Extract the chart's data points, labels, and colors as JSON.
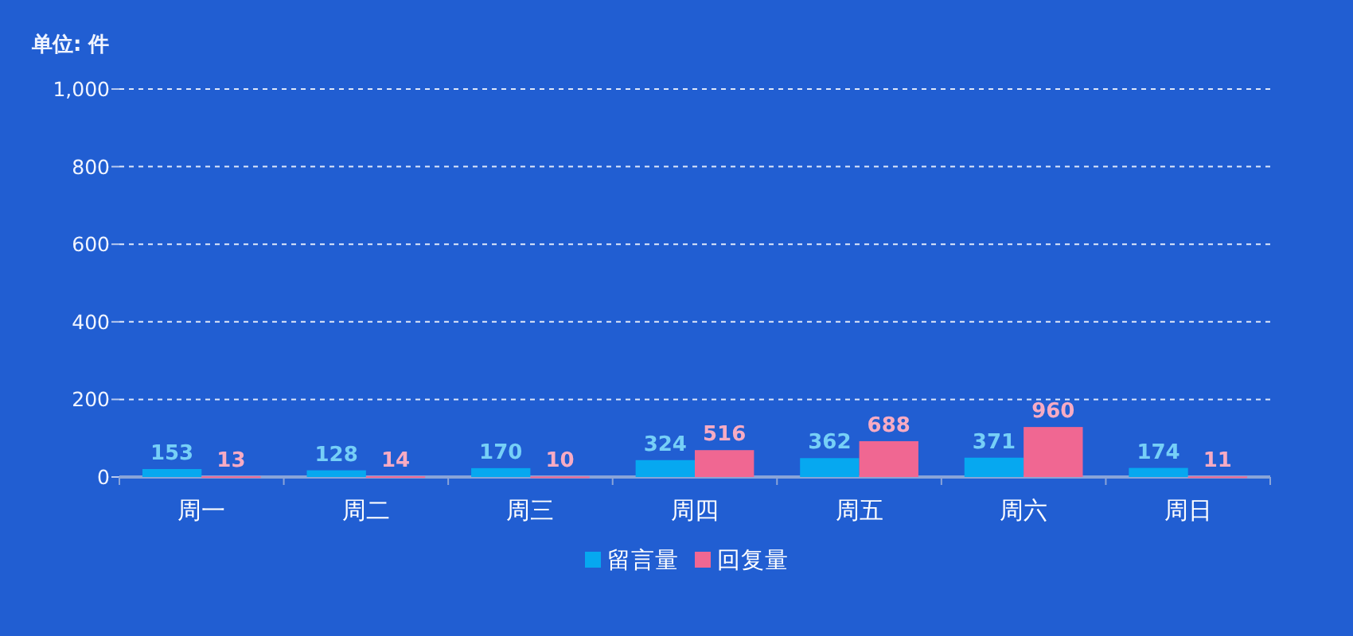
{
  "chart_data": {
    "type": "bar",
    "ylabel": "单位: 件",
    "categories": [
      "周一",
      "周二",
      "周三",
      "周四",
      "周五",
      "周六",
      "周日"
    ],
    "series": [
      {
        "name": "留言量",
        "color": "#06a8f0",
        "axis": "y2",
        "values": [
          153,
          128,
          170,
          324,
          362,
          371,
          174
        ]
      },
      {
        "name": "回复量",
        "color": "#f06792",
        "axis": "y2",
        "values": [
          13,
          14,
          10,
          516,
          688,
          960,
          11
        ]
      }
    ],
    "data_labels": true,
    "ylim": [
      0,
      1000
    ],
    "yticks": [
      0,
      200,
      400,
      600,
      800,
      {
        "value": 1000,
        "label": "1,000"
      }
    ],
    "y2lim": [
      0,
      7450
    ],
    "grid": "y",
    "legend": "bottom"
  }
}
